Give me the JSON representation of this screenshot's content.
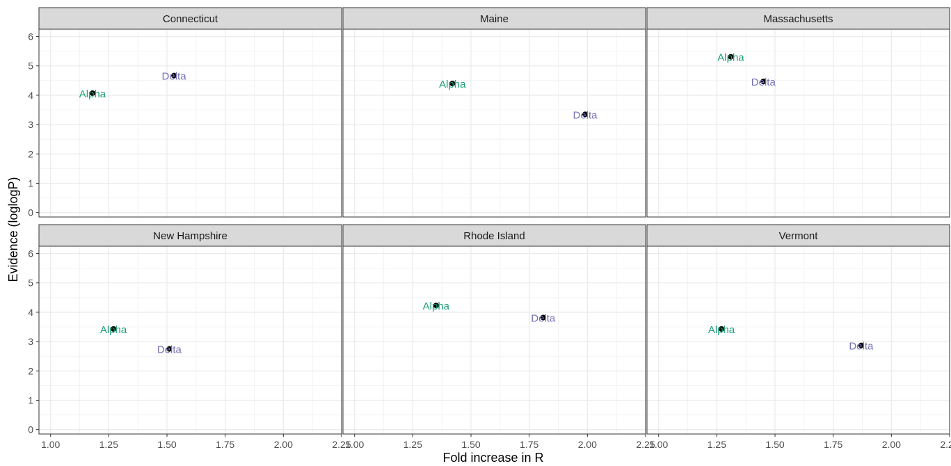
{
  "chart_data": {
    "type": "scatter",
    "xlabel": "Fold increase in R",
    "ylabel": "Evidence (loglogP)",
    "xlim": [
      0.95,
      2.25
    ],
    "ylim": [
      -0.15,
      6.25
    ],
    "x_ticks": [
      "1.00",
      "1.25",
      "1.50",
      "1.75",
      "2.00",
      "2.25"
    ],
    "y_ticks": [
      "0",
      "1",
      "2",
      "3",
      "4",
      "5",
      "6"
    ],
    "grid": true,
    "series_colors": {
      "Alpha": "#1b9e77",
      "Delta": "#7570b3"
    },
    "point_color": "#000000",
    "panels": [
      {
        "title": "Connecticut",
        "points": [
          {
            "label": "Alpha",
            "x": 1.18,
            "y": 4.07
          },
          {
            "label": "Delta",
            "x": 1.53,
            "y": 4.67
          }
        ]
      },
      {
        "title": "Maine",
        "points": [
          {
            "label": "Alpha",
            "x": 1.42,
            "y": 4.4
          },
          {
            "label": "Delta",
            "x": 1.99,
            "y": 3.35
          }
        ]
      },
      {
        "title": "Massachusetts",
        "points": [
          {
            "label": "Alpha",
            "x": 1.31,
            "y": 5.31
          },
          {
            "label": "Delta",
            "x": 1.45,
            "y": 4.47
          }
        ]
      },
      {
        "title": "New Hampshire",
        "points": [
          {
            "label": "Alpha",
            "x": 1.27,
            "y": 3.43
          },
          {
            "label": "Delta",
            "x": 1.51,
            "y": 2.75
          }
        ]
      },
      {
        "title": "Rhode Island",
        "points": [
          {
            "label": "Alpha",
            "x": 1.35,
            "y": 4.23
          },
          {
            "label": "Delta",
            "x": 1.81,
            "y": 3.82
          }
        ]
      },
      {
        "title": "Vermont",
        "points": [
          {
            "label": "Alpha",
            "x": 1.27,
            "y": 3.43
          },
          {
            "label": "Delta",
            "x": 1.87,
            "y": 2.87
          }
        ]
      }
    ]
  }
}
